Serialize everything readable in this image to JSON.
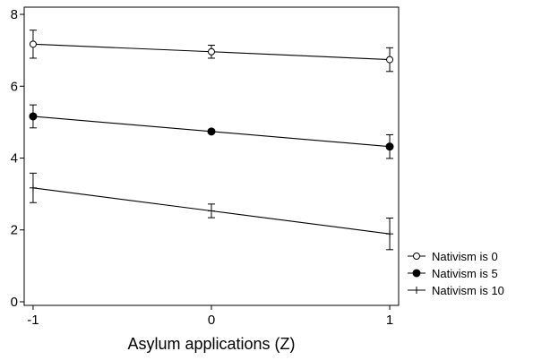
{
  "chart_data": {
    "type": "line",
    "title": "",
    "xlabel": "Asylum applications (Z)",
    "ylabel": "",
    "x": [
      -1,
      0,
      1
    ],
    "xticks": [
      "-1",
      "0",
      "1"
    ],
    "yticks": [
      "0",
      "2",
      "4",
      "6",
      "8"
    ],
    "xlim": [
      -1.05,
      1.05
    ],
    "ylim": [
      -0.1,
      8.2
    ],
    "grid": false,
    "legend_position": "right",
    "series": [
      {
        "name": "Nativism is 0",
        "marker": "open-circle",
        "values": [
          7.17,
          6.96,
          6.74
        ],
        "ci_low": [
          6.78,
          6.78,
          6.41
        ],
        "ci_high": [
          7.56,
          7.14,
          7.07
        ]
      },
      {
        "name": "Nativism is 5",
        "marker": "filled-circle",
        "values": [
          5.16,
          4.74,
          4.32
        ],
        "ci_low": [
          4.84,
          4.7,
          3.99
        ],
        "ci_high": [
          5.48,
          4.78,
          4.65
        ]
      },
      {
        "name": "Nativism is 10",
        "marker": "plus",
        "values": [
          3.17,
          2.53,
          1.89
        ],
        "ci_low": [
          2.76,
          2.34,
          1.45
        ],
        "ci_high": [
          3.58,
          2.72,
          2.33
        ]
      }
    ]
  }
}
